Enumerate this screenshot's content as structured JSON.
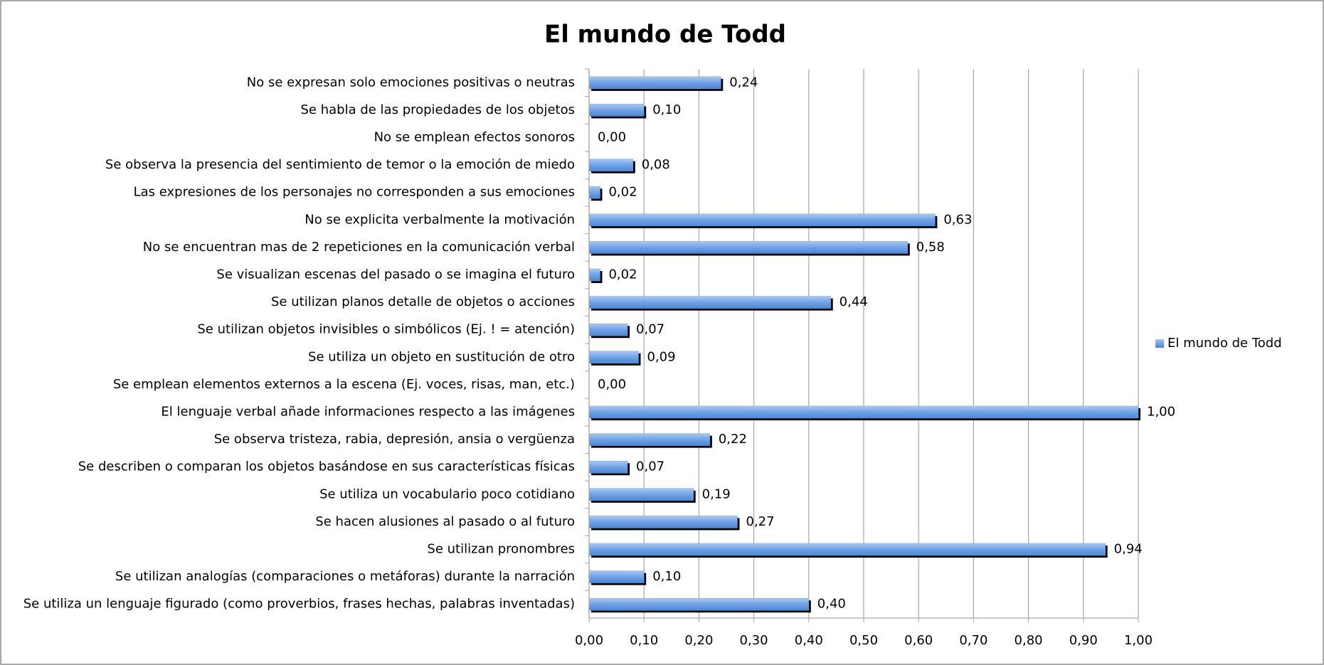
{
  "chart_data": {
    "type": "bar",
    "orientation": "horizontal",
    "title": "El mundo de Todd",
    "categories": [
      "No se expresan solo emociones positivas o neutras",
      "Se habla de las propiedades de los objetos",
      "No se emplean efectos sonoros",
      "Se observa la presencia del sentimiento de temor o la emoción de miedo",
      "Las expresiones de los personajes no corresponden a sus emociones",
      "No se explicita verbalmente la motivación",
      "No se encuentran mas de 2 repeticiones en la comunicación verbal",
      "Se visualizan escenas del pasado o se imagina el futuro",
      "Se utilizan planos detalle de objetos o acciones",
      "Se utilizan objetos invisibles o simbólicos (Ej. ! = atención)",
      "Se utiliza un objeto en sustitución de otro",
      "Se emplean elementos externos a la escena (Ej. voces, risas, man, etc.)",
      "El lenguaje verbal añade informaciones respecto a las imágenes",
      "Se observa tristeza, rabia, depresión, ansia o vergüenza",
      "Se describen o comparan los objetos basándose en sus características físicas",
      "Se utiliza un vocabulario poco cotidiano",
      "Se hacen alusiones al pasado o al futuro",
      "Se utilizan pronombres",
      "Se utilizan analogías (comparaciones o metáforas) durante la narración",
      "Se utiliza un lenguaje figurado (como proverbios, frases hechas, palabras inventadas)"
    ],
    "series": [
      {
        "name": "El mundo de Todd",
        "color": "#6fa2e6",
        "values": [
          0.24,
          0.1,
          0.0,
          0.08,
          0.02,
          0.63,
          0.58,
          0.02,
          0.44,
          0.07,
          0.09,
          0.0,
          1.0,
          0.22,
          0.07,
          0.19,
          0.27,
          0.94,
          0.1,
          0.4
        ],
        "value_labels": [
          "0,24",
          "0,10",
          "0,00",
          "0,08",
          "0,02",
          "0,63",
          "0,58",
          "0,02",
          "0,44",
          "0,07",
          "0,09",
          "0,00",
          "1,00",
          "0,22",
          "0,07",
          "0,19",
          "0,27",
          "0,94",
          "0,10",
          "0,40"
        ]
      }
    ],
    "xlim": [
      0,
      1
    ],
    "xticks": [
      {
        "value": 0,
        "label": "0,00"
      },
      {
        "value": 0.1,
        "label": "0,10"
      },
      {
        "value": 0.2,
        "label": "0,20"
      },
      {
        "value": 0.3,
        "label": "0,30"
      },
      {
        "value": 0.4,
        "label": "0,40"
      },
      {
        "value": 0.5,
        "label": "0,50"
      },
      {
        "value": 0.6,
        "label": "0,60"
      },
      {
        "value": 0.7,
        "label": "0,70"
      },
      {
        "value": 0.8,
        "label": "0,80"
      },
      {
        "value": 0.9,
        "label": "0,90"
      },
      {
        "value": 1,
        "label": "1,00"
      }
    ],
    "grid": true,
    "legend": "right"
  }
}
